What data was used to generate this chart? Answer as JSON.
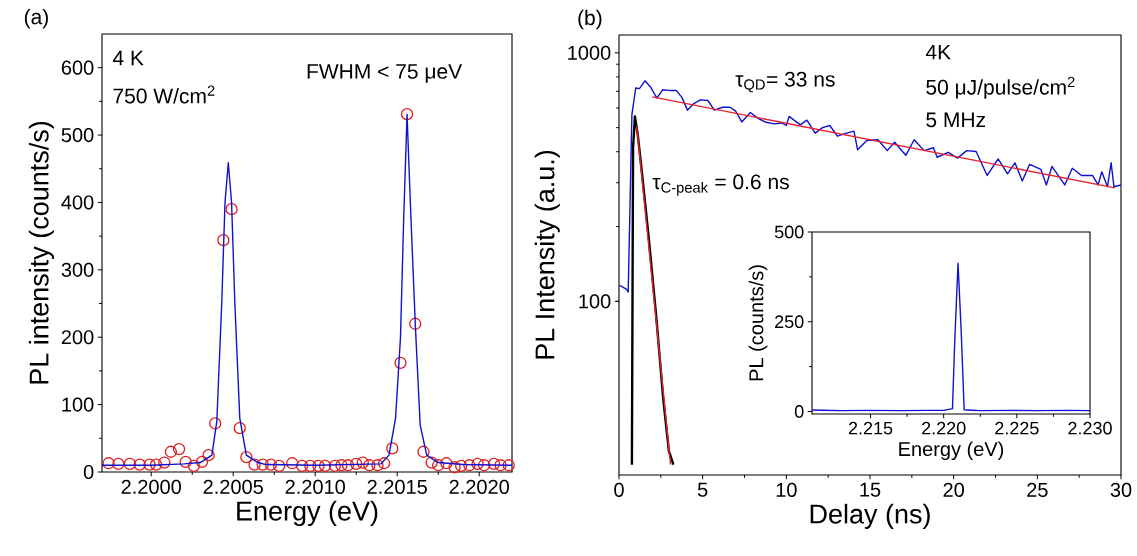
{
  "chart_data": [
    {
      "type": "line",
      "xlabel": "Energy (eV)",
      "ylabel": "PL intensity (counts/s)",
      "xlim": [
        2.1997,
        2.2022
      ],
      "xticks": [
        {
          "value": 2.2,
          "label": "2.2000"
        },
        {
          "value": 2.2005,
          "label": "2.2005"
        },
        {
          "value": 2.201,
          "label": "2.2010"
        },
        {
          "value": 2.2015,
          "label": "2.2015"
        },
        {
          "value": 2.202,
          "label": "2.2020"
        }
      ],
      "ylim": [
        0,
        650
      ],
      "yticks": [
        0,
        100,
        200,
        300,
        400,
        500,
        600
      ],
      "annotations": [
        "(a)",
        "4 K",
        "750 W/cm$^{2}$",
        "FWHM < 75 μeV"
      ],
      "series": [
        {
          "type": "scatter",
          "marker": "circle",
          "color": "#e02020",
          "x": [
            2.19974,
            2.1998,
            2.19987,
            2.19993,
            2.19999,
            2.20003,
            2.20008,
            2.20012,
            2.20017,
            2.20021,
            2.20026,
            2.20031,
            2.20035,
            2.20039,
            2.20044,
            2.20049,
            2.20054,
            2.20058,
            2.20063,
            2.20068,
            2.20073,
            2.20078,
            2.20086,
            2.20092,
            2.20097,
            2.20102,
            2.20106,
            2.20112,
            2.20116,
            2.2012,
            2.20125,
            2.20129,
            2.20133,
            2.20138,
            2.20142,
            2.20147,
            2.20152,
            2.20156,
            2.20161,
            2.20166,
            2.20171,
            2.20175,
            2.2018,
            2.20185,
            2.20189,
            2.20194,
            2.20199,
            2.20203,
            2.20209,
            2.20213,
            2.20218
          ],
          "values": [
            13,
            12,
            12,
            11,
            11,
            11,
            14,
            30,
            34,
            15,
            9,
            15,
            25,
            72,
            344,
            390,
            65,
            22,
            11,
            11,
            11,
            9,
            13,
            9,
            9,
            9,
            9,
            9,
            10,
            10,
            12,
            14,
            10,
            10,
            13,
            35,
            162,
            531,
            220,
            30,
            14,
            10,
            13,
            7,
            9,
            10,
            12,
            10,
            12,
            10,
            10
          ]
        },
        {
          "type": "line",
          "color": "#1010d0",
          "x": [
            2.1997,
            2.2,
            2.2002,
            2.2003,
            2.20037,
            2.2004,
            2.20043,
            2.20045,
            2.20047,
            2.20049,
            2.20051,
            2.20054,
            2.20058,
            2.20065,
            2.2007,
            2.201,
            2.2014,
            2.20145,
            2.20149,
            2.20152,
            2.20154,
            2.20156,
            2.20158,
            2.20161,
            2.20164,
            2.20168,
            2.20175,
            2.2019,
            2.2022
          ],
          "values": [
            10,
            10,
            12,
            14,
            25,
            75,
            250,
            400,
            459,
            400,
            250,
            80,
            25,
            14,
            11,
            10,
            12,
            25,
            80,
            200,
            380,
            531,
            400,
            220,
            70,
            25,
            14,
            11,
            10
          ]
        }
      ]
    },
    {
      "type": "line",
      "log": "y",
      "xlabel": "Delay (ns)",
      "ylabel": "PL Intensity (a.u.)",
      "xlim": [
        0,
        30
      ],
      "xticks": [
        0,
        5,
        10,
        15,
        20,
        25,
        30
      ],
      "ylim": [
        20,
        1180
      ],
      "yticks": [
        100,
        1000
      ],
      "annotations": [
        "(b)",
        "τ$_{QD}$= 33 ns",
        "τ$_{C-peak}$ = 0.6 ns",
        "4K",
        "50 μJ/pulse/cm$^{2}$",
        "5 MHz"
      ],
      "series": [
        {
          "color": "#1010d0",
          "x": [
            0.04,
            0.44,
            0.55,
            0.77,
            1.0,
            1.22,
            1.55,
            1.88,
            2.26,
            2.61,
            3.1,
            3.43,
            3.76,
            4.09,
            4.47,
            4.86,
            5.31,
            5.7,
            6.19,
            6.63,
            6.96,
            7.34,
            7.85,
            8.29,
            8.73,
            9.29,
            9.73,
            9.99,
            10.17,
            10.83,
            11.23,
            11.72,
            12.16,
            12.6,
            13.05,
            13.6,
            14.04,
            14.26,
            14.81,
            15.48,
            16.03,
            16.47,
            17.14,
            17.64,
            18.24,
            18.79,
            19.01,
            19.68,
            20.23,
            20.78,
            21.34,
            22.0,
            22.66,
            23.22,
            23.66,
            24.1,
            24.54,
            25.21,
            25.54,
            25.87,
            26.64,
            27.09,
            27.64,
            28.3,
            28.63,
            28.85,
            29.19,
            29.41,
            29.58,
            30
          ],
          "values": [
            116,
            112,
            109,
            564,
            722,
            718,
            772,
            729,
            658,
            710,
            705,
            705,
            662,
            588,
            625,
            647,
            643,
            588,
            604,
            604,
            584,
            527,
            575,
            546,
            527,
            518,
            522,
            510,
            555,
            513,
            536,
            475,
            500,
            510,
            462,
            475,
            484,
            407,
            444,
            447,
            404,
            437,
            387,
            447,
            404,
            415,
            380,
            398,
            377,
            404,
            401,
            321,
            374,
            326,
            361,
            305,
            356,
            340,
            294,
            349,
            294,
            343,
            321,
            321,
            294,
            332,
            289,
            361,
            289,
            294
          ]
        },
        {
          "color": "#000000",
          "x": [
            0.77,
            0.84,
            0.95,
            1.11,
            1.33,
            1.77,
            2.21,
            2.65,
            2.98,
            3.25
          ],
          "values": [
            22,
            415,
            555,
            475,
            349,
            182,
            89,
            40,
            25,
            22
          ]
        },
        {
          "color": "#e8202a",
          "x": [
            1.99,
            29.63
          ],
          "values": [
            665,
            286
          ]
        },
        {
          "color": "#e8202a",
          "x": [
            1.06,
            3.08
          ],
          "values": [
            509,
            22
          ]
        }
      ]
    },
    {
      "type": "line",
      "xlabel": "Energy (eV)",
      "ylabel": "PL (counts/s)",
      "xlim": [
        2.211,
        2.23
      ],
      "xticks": [
        2.215,
        {
          "value": 2.22,
          "label": "2.220"
        },
        2.225,
        {
          "value": 2.23,
          "label": "2.230"
        }
      ],
      "ylim": [
        -7,
        500
      ],
      "yticks": [
        0,
        250,
        500
      ],
      "series": [
        {
          "color": "#1010d0",
          "x": [
            2.211,
            2.213,
            2.215,
            2.217,
            2.219,
            2.22,
            2.2206,
            2.22076,
            2.22098,
            2.2212,
            2.2214,
            2.2225,
            2.2245,
            2.2265,
            2.2285,
            2.23
          ],
          "values": [
            4,
            2,
            3,
            2,
            3,
            3,
            8,
            200,
            413,
            220,
            5,
            2,
            3,
            2,
            3,
            2
          ]
        }
      ]
    }
  ]
}
